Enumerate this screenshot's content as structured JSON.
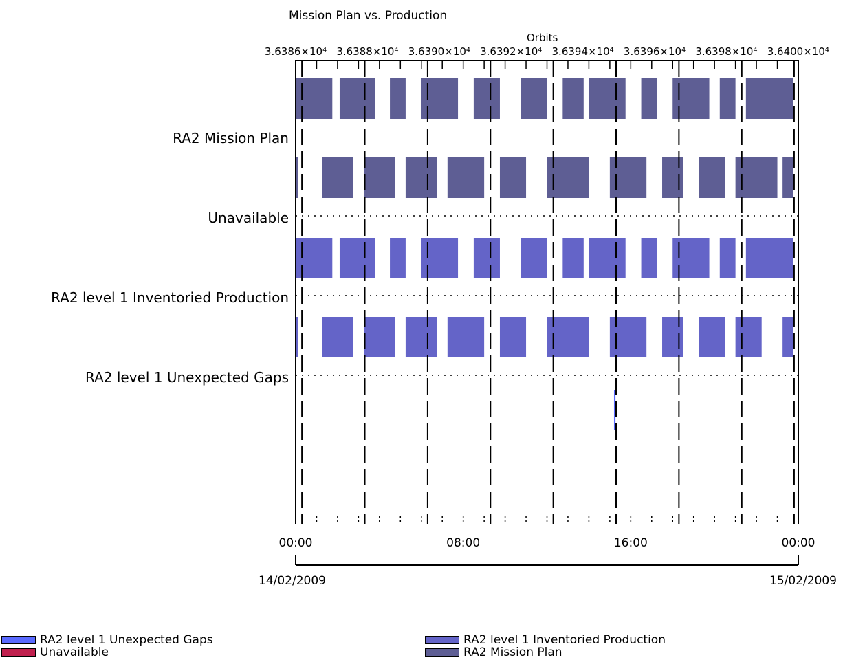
{
  "chart_data": {
    "type": "gantt",
    "title": "Mission Plan vs. Production",
    "top_axis": {
      "label": "Orbits",
      "tick_labels": [
        "3.6386×10⁴",
        "3.6388×10⁴",
        "3.6390×10⁴",
        "3.6392×10⁴",
        "3.6394×10⁴",
        "3.6396×10⁴",
        "3.6398×10⁴",
        "3.6400×10⁴"
      ]
    },
    "x_axis": {
      "range": [
        "14/02/2009 00:00",
        "15/02/2009 00:00"
      ],
      "tick_labels": [
        "00:00",
        "08:00",
        "16:00",
        "00:00"
      ],
      "date_labels": [
        "14/02/2009",
        "15/02/2009"
      ]
    },
    "rows": [
      {
        "name": "RA2 Mission Plan",
        "color": "#5e5e94",
        "upper": [
          [
            0.0,
            1.75
          ],
          [
            2.1,
            3.8
          ],
          [
            4.5,
            5.25
          ],
          [
            6.0,
            7.75
          ],
          [
            8.5,
            9.75
          ],
          [
            10.75,
            12.0
          ],
          [
            12.75,
            13.75
          ],
          [
            14.0,
            15.75
          ],
          [
            16.5,
            17.25
          ],
          [
            18.0,
            19.75
          ],
          [
            20.25,
            21.0
          ],
          [
            21.5,
            23.75
          ]
        ],
        "lower": [
          [
            0.0,
            0.1
          ],
          [
            1.25,
            2.75
          ],
          [
            3.25,
            4.75
          ],
          [
            5.25,
            6.75
          ],
          [
            7.25,
            9.0
          ],
          [
            9.75,
            11.0
          ],
          [
            12.0,
            14.0
          ],
          [
            15.0,
            16.75
          ],
          [
            17.5,
            18.5
          ],
          [
            19.25,
            20.5
          ],
          [
            21.0,
            23.0
          ],
          [
            23.25,
            23.75
          ]
        ]
      },
      {
        "name": "Unavailable",
        "color": "#c0204e",
        "upper": [],
        "lower": []
      },
      {
        "name": "RA2 level 1 Inventoried Production",
        "color": "#6464c8",
        "upper": [
          [
            0.0,
            1.75
          ],
          [
            2.1,
            3.8
          ],
          [
            4.5,
            5.25
          ],
          [
            6.0,
            7.75
          ],
          [
            8.5,
            9.75
          ],
          [
            10.75,
            12.0
          ],
          [
            12.75,
            13.75
          ],
          [
            14.0,
            15.75
          ],
          [
            16.5,
            17.25
          ],
          [
            18.0,
            19.75
          ],
          [
            20.25,
            21.0
          ],
          [
            21.5,
            23.75
          ]
        ],
        "lower": [
          [
            0.0,
            0.1
          ],
          [
            1.25,
            2.75
          ],
          [
            3.25,
            4.75
          ],
          [
            5.25,
            6.75
          ],
          [
            7.25,
            9.0
          ],
          [
            9.75,
            11.0
          ],
          [
            12.0,
            14.0
          ],
          [
            15.0,
            16.75
          ],
          [
            17.5,
            18.5
          ],
          [
            19.25,
            20.5
          ],
          [
            21.0,
            22.25
          ],
          [
            23.25,
            23.75
          ]
        ]
      },
      {
        "name": "RA2 level 1 Unexpected Gaps",
        "color": "#5a6aff",
        "upper": [],
        "lower": [],
        "full": [
          [
            15.2,
            15.27
          ]
        ]
      }
    ],
    "legend": [
      {
        "label": "RA2 level 1 Unexpected Gaps",
        "color": "#5a6aff"
      },
      {
        "label": "Unavailable",
        "color": "#c0204e"
      },
      {
        "label": "RA2 level 1 Inventoried Production",
        "color": "#6464c8"
      },
      {
        "label": "RA2 Mission Plan",
        "color": "#5e5e94"
      }
    ],
    "grid": true
  }
}
